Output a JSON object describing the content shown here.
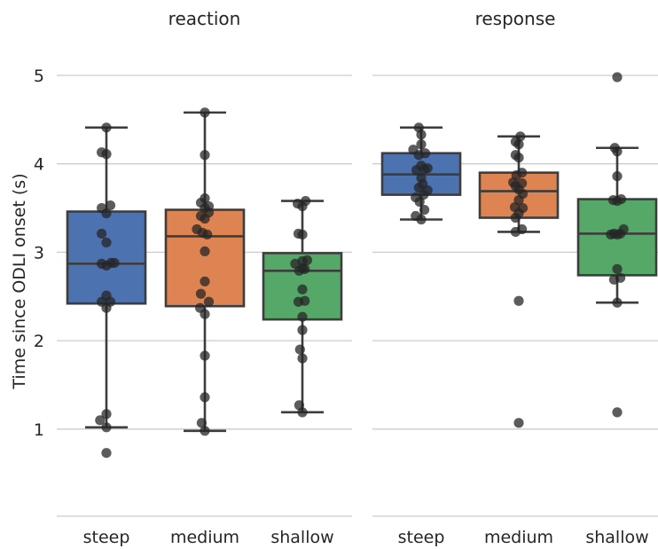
{
  "chart_data": {
    "type": "box",
    "ylabel": "Time since ODLI onset (s)",
    "categories": [
      "steep",
      "medium",
      "shallow"
    ],
    "ylim": [
      0,
      5.3
    ],
    "yticks": [
      1,
      2,
      3,
      4,
      5
    ],
    "grid": "horizontal",
    "colors": {
      "steep": "#4c72b0",
      "medium": "#dd8452",
      "shallow": "#55a868",
      "box_edge": "#3d3d3d",
      "point": "#262626",
      "grid": "#cccccc"
    },
    "panels": [
      {
        "title": "reaction",
        "boxes": [
          {
            "category": "steep",
            "whisker_low": 1.02,
            "q1": 2.42,
            "median": 2.87,
            "q3": 3.46,
            "whisker_high": 4.41
          },
          {
            "category": "medium",
            "whisker_low": 0.98,
            "q1": 2.39,
            "median": 3.18,
            "q3": 3.48,
            "whisker_high": 4.58
          },
          {
            "category": "shallow",
            "whisker_low": 1.19,
            "q1": 2.24,
            "median": 2.79,
            "q3": 2.99,
            "whisker_high": 3.58
          }
        ],
        "points": [
          [
            0.73,
            0,
            0
          ],
          [
            1.02,
            0,
            0
          ],
          [
            1.1,
            0,
            -0.8
          ],
          [
            1.17,
            0,
            0
          ],
          [
            2.37,
            0,
            0
          ],
          [
            2.44,
            0,
            -0.6
          ],
          [
            2.44,
            0,
            0.5
          ],
          [
            2.51,
            0,
            0
          ],
          [
            2.85,
            0,
            0
          ],
          [
            2.87,
            0,
            -0.6
          ],
          [
            2.88,
            0,
            0.6
          ],
          [
            2.88,
            0,
            1.0
          ],
          [
            3.11,
            0,
            0
          ],
          [
            3.21,
            0,
            -0.6
          ],
          [
            3.44,
            0,
            0
          ],
          [
            3.5,
            0,
            -0.6
          ],
          [
            3.53,
            0,
            0.5
          ],
          [
            4.11,
            0,
            0
          ],
          [
            4.13,
            0,
            -0.6
          ],
          [
            4.41,
            0,
            0
          ],
          [
            0.98,
            1,
            0
          ],
          [
            1.07,
            1,
            -0.4
          ],
          [
            1.36,
            1,
            0
          ],
          [
            1.83,
            1,
            0
          ],
          [
            2.3,
            1,
            0
          ],
          [
            2.37,
            1,
            -0.6
          ],
          [
            2.44,
            1,
            0.5
          ],
          [
            2.53,
            1,
            -0.5
          ],
          [
            2.67,
            1,
            0
          ],
          [
            3.01,
            1,
            0
          ],
          [
            3.2,
            1,
            0.3
          ],
          [
            3.22,
            1,
            -0.3
          ],
          [
            3.26,
            1,
            -1.0
          ],
          [
            3.38,
            1,
            0
          ],
          [
            3.41,
            1,
            -0.5
          ],
          [
            3.45,
            1,
            0.5
          ],
          [
            3.5,
            1,
            0
          ],
          [
            3.52,
            1,
            0.5
          ],
          [
            3.56,
            1,
            -0.5
          ],
          [
            3.61,
            1,
            0
          ],
          [
            4.1,
            1,
            0
          ],
          [
            4.58,
            1,
            0
          ],
          [
            1.19,
            2,
            0
          ],
          [
            1.27,
            2,
            -0.4
          ],
          [
            1.8,
            2,
            0
          ],
          [
            1.9,
            2,
            -0.3
          ],
          [
            2.12,
            2,
            0
          ],
          [
            2.27,
            2,
            0
          ],
          [
            2.44,
            2,
            -0.5
          ],
          [
            2.45,
            2,
            0.3
          ],
          [
            2.58,
            2,
            0
          ],
          [
            2.79,
            2,
            -0.4
          ],
          [
            2.81,
            2,
            0.3
          ],
          [
            2.82,
            2,
            0
          ],
          [
            2.87,
            2,
            -0.9
          ],
          [
            2.9,
            2,
            0
          ],
          [
            2.91,
            2,
            0.6
          ],
          [
            3.2,
            2,
            0
          ],
          [
            3.21,
            2,
            -0.5
          ],
          [
            3.52,
            2,
            0
          ],
          [
            3.55,
            2,
            -0.6
          ],
          [
            3.58,
            2,
            0.4
          ]
        ]
      },
      {
        "title": "response",
        "boxes": [
          {
            "category": "steep",
            "whisker_low": 3.37,
            "q1": 3.65,
            "median": 3.88,
            "q3": 4.12,
            "whisker_high": 4.41
          },
          {
            "category": "medium",
            "whisker_low": 3.23,
            "q1": 3.39,
            "median": 3.69,
            "q3": 3.9,
            "whisker_high": 4.31
          },
          {
            "category": "shallow",
            "whisker_low": 2.43,
            "q1": 2.74,
            "median": 3.21,
            "q3": 3.6,
            "whisker_high": 4.18
          }
        ],
        "points": [
          [
            3.37,
            0,
            0
          ],
          [
            3.41,
            0,
            -0.7
          ],
          [
            3.48,
            0,
            0.4
          ],
          [
            3.57,
            0,
            -0.2
          ],
          [
            3.62,
            0,
            -0.7
          ],
          [
            3.65,
            0,
            0.3
          ],
          [
            3.7,
            0,
            0.8
          ],
          [
            3.73,
            0,
            -0.3
          ],
          [
            3.77,
            0,
            0.2
          ],
          [
            3.84,
            0,
            0
          ],
          [
            3.93,
            0,
            -0.6
          ],
          [
            3.94,
            0,
            0.4
          ],
          [
            3.95,
            0,
            0.8
          ],
          [
            3.98,
            0,
            0
          ],
          [
            4.1,
            0,
            -0.3
          ],
          [
            4.12,
            0,
            0.5
          ],
          [
            4.16,
            0,
            -1.0
          ],
          [
            4.22,
            0,
            0
          ],
          [
            4.33,
            0,
            0
          ],
          [
            4.41,
            0,
            -0.3
          ],
          [
            1.07,
            1,
            0
          ],
          [
            2.45,
            1,
            0
          ],
          [
            3.23,
            1,
            -0.4
          ],
          [
            3.26,
            1,
            0.4
          ],
          [
            3.39,
            1,
            -0.4
          ],
          [
            3.44,
            1,
            0
          ],
          [
            3.5,
            1,
            0.5
          ],
          [
            3.51,
            1,
            -0.5
          ],
          [
            3.59,
            1,
            0
          ],
          [
            3.66,
            1,
            0.5
          ],
          [
            3.71,
            1,
            0
          ],
          [
            3.75,
            1,
            -0.4
          ],
          [
            3.78,
            1,
            0.4
          ],
          [
            3.79,
            1,
            -0.7
          ],
          [
            3.87,
            1,
            -0.3
          ],
          [
            3.9,
            1,
            0.4
          ],
          [
            4.07,
            1,
            0
          ],
          [
            4.1,
            1,
            -0.4
          ],
          [
            4.22,
            1,
            0
          ],
          [
            4.25,
            1,
            -0.4
          ],
          [
            4.31,
            1,
            0.2
          ],
          [
            1.19,
            2,
            0
          ],
          [
            2.43,
            2,
            0
          ],
          [
            2.69,
            2,
            -0.4
          ],
          [
            2.71,
            2,
            0.4
          ],
          [
            2.81,
            2,
            0
          ],
          [
            3.2,
            2,
            -0.8
          ],
          [
            3.2,
            2,
            0
          ],
          [
            3.21,
            2,
            -0.4
          ],
          [
            3.21,
            2,
            0.4
          ],
          [
            3.26,
            2,
            0.8
          ],
          [
            3.58,
            2,
            0
          ],
          [
            3.59,
            2,
            -0.5
          ],
          [
            3.6,
            2,
            0.5
          ],
          [
            3.86,
            2,
            0
          ],
          [
            4.14,
            2,
            0
          ],
          [
            4.18,
            2,
            -0.3
          ],
          [
            4.98,
            2,
            0
          ]
        ]
      }
    ]
  }
}
